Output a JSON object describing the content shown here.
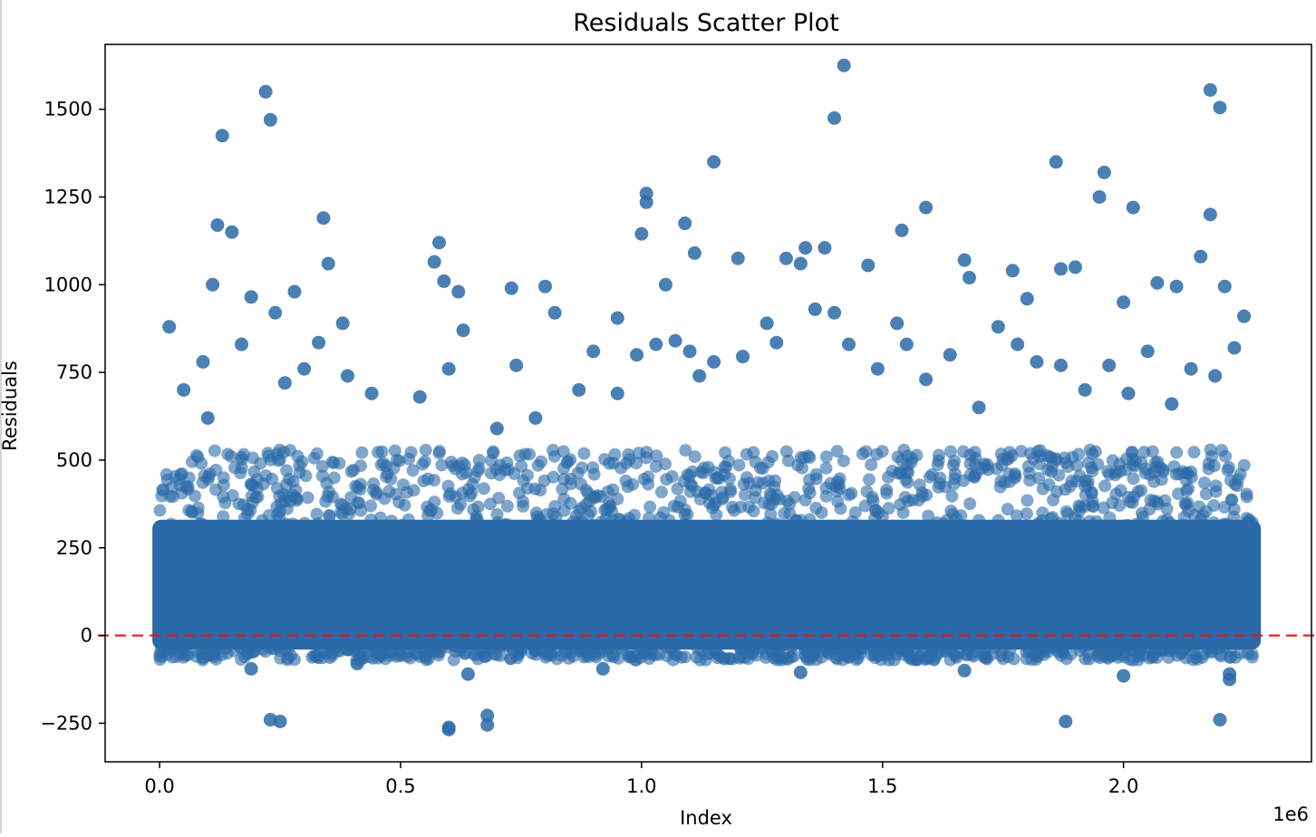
{
  "chart_data": {
    "type": "scatter",
    "title": "Residuals Scatter Plot",
    "xlabel": "Index",
    "ylabel": "Residuals",
    "x_offset_text": "1e6",
    "xlim": [
      -0.113,
      2.39
    ],
    "ylim": [
      -360,
      1685
    ],
    "x_ticks": [
      0.0,
      0.5,
      1.0,
      1.5,
      2.0
    ],
    "x_tick_labels": [
      "0.0",
      "0.5",
      "1.0",
      "1.5",
      "2.0"
    ],
    "y_ticks": [
      -250,
      0,
      250,
      500,
      750,
      1000,
      1250,
      1500
    ],
    "y_tick_labels": [
      "−250",
      "0",
      "250",
      "500",
      "750",
      "1000",
      "1250",
      "1500"
    ],
    "x_unit_multiplier": 1000000,
    "grid": false,
    "reference_line": {
      "y": 0,
      "style": "dashed",
      "color": "#e8151b"
    },
    "point_color": "#2b6aa8",
    "point_alpha": 0.6,
    "dense_band": {
      "x_range": [
        0.0,
        2.27
      ],
      "y_range": [
        -40,
        330
      ]
    },
    "series": [
      {
        "points": [
          [
            0.02,
            880
          ],
          [
            0.11,
            1000
          ],
          [
            0.12,
            1170
          ],
          [
            0.13,
            1425
          ],
          [
            0.15,
            1150
          ],
          [
            0.19,
            965
          ],
          [
            0.22,
            1550
          ],
          [
            0.23,
            1470
          ],
          [
            0.24,
            920
          ],
          [
            0.28,
            980
          ],
          [
            0.34,
            1190
          ],
          [
            0.35,
            1060
          ],
          [
            0.38,
            890
          ],
          [
            0.58,
            1120
          ],
          [
            0.57,
            1065
          ],
          [
            0.59,
            1010
          ],
          [
            0.62,
            980
          ],
          [
            0.73,
            990
          ],
          [
            0.8,
            995
          ],
          [
            0.82,
            920
          ],
          [
            0.95,
            905
          ],
          [
            1.0,
            1145
          ],
          [
            1.01,
            1260
          ],
          [
            1.01,
            1235
          ],
          [
            1.05,
            1000
          ],
          [
            1.09,
            1175
          ],
          [
            1.11,
            1090
          ],
          [
            1.15,
            1350
          ],
          [
            1.2,
            1075
          ],
          [
            1.3,
            1075
          ],
          [
            1.33,
            1060
          ],
          [
            1.34,
            1105
          ],
          [
            1.38,
            1105
          ],
          [
            1.4,
            1475
          ],
          [
            1.42,
            1625
          ],
          [
            1.47,
            1055
          ],
          [
            1.54,
            1155
          ],
          [
            1.59,
            1220
          ],
          [
            1.67,
            1070
          ],
          [
            1.68,
            1020
          ],
          [
            1.77,
            1040
          ],
          [
            1.8,
            960
          ],
          [
            1.86,
            1350
          ],
          [
            1.87,
            1045
          ],
          [
            1.9,
            1050
          ],
          [
            1.95,
            1250
          ],
          [
            1.96,
            1320
          ],
          [
            2.0,
            950
          ],
          [
            2.02,
            1220
          ],
          [
            2.07,
            1005
          ],
          [
            2.11,
            995
          ],
          [
            2.16,
            1080
          ],
          [
            2.18,
            1200
          ],
          [
            2.18,
            1555
          ],
          [
            2.2,
            1505
          ],
          [
            2.21,
            995
          ],
          [
            2.25,
            910
          ],
          [
            0.05,
            700
          ],
          [
            0.09,
            780
          ],
          [
            0.1,
            620
          ],
          [
            0.17,
            830
          ],
          [
            0.26,
            720
          ],
          [
            0.3,
            760
          ],
          [
            0.33,
            835
          ],
          [
            0.39,
            740
          ],
          [
            0.44,
            690
          ],
          [
            0.54,
            680
          ],
          [
            0.6,
            760
          ],
          [
            0.63,
            870
          ],
          [
            0.7,
            590
          ],
          [
            0.74,
            770
          ],
          [
            0.78,
            620
          ],
          [
            0.87,
            700
          ],
          [
            0.9,
            810
          ],
          [
            0.95,
            690
          ],
          [
            0.99,
            800
          ],
          [
            1.03,
            830
          ],
          [
            1.07,
            840
          ],
          [
            1.1,
            810
          ],
          [
            1.12,
            740
          ],
          [
            1.15,
            780
          ],
          [
            1.21,
            795
          ],
          [
            1.26,
            890
          ],
          [
            1.28,
            835
          ],
          [
            1.36,
            930
          ],
          [
            1.4,
            920
          ],
          [
            1.43,
            830
          ],
          [
            1.49,
            760
          ],
          [
            1.53,
            890
          ],
          [
            1.55,
            830
          ],
          [
            1.59,
            730
          ],
          [
            1.64,
            800
          ],
          [
            1.7,
            650
          ],
          [
            1.74,
            880
          ],
          [
            1.78,
            830
          ],
          [
            1.82,
            780
          ],
          [
            1.87,
            770
          ],
          [
            1.92,
            700
          ],
          [
            1.97,
            770
          ],
          [
            2.01,
            690
          ],
          [
            2.05,
            810
          ],
          [
            2.1,
            660
          ],
          [
            2.14,
            760
          ],
          [
            2.19,
            740
          ],
          [
            2.23,
            820
          ],
          [
            0.23,
            -240
          ],
          [
            0.25,
            -245
          ],
          [
            0.6,
            -262
          ],
          [
            0.6,
            -268
          ],
          [
            0.68,
            -228
          ],
          [
            0.68,
            -255
          ],
          [
            1.88,
            -245
          ],
          [
            2.2,
            -240
          ],
          [
            0.19,
            -95
          ],
          [
            0.41,
            -80
          ],
          [
            0.64,
            -110
          ],
          [
            0.92,
            -95
          ],
          [
            1.33,
            -105
          ],
          [
            1.67,
            -100
          ],
          [
            2.0,
            -115
          ],
          [
            2.22,
            -125
          ],
          [
            2.22,
            -110
          ]
        ]
      }
    ]
  }
}
